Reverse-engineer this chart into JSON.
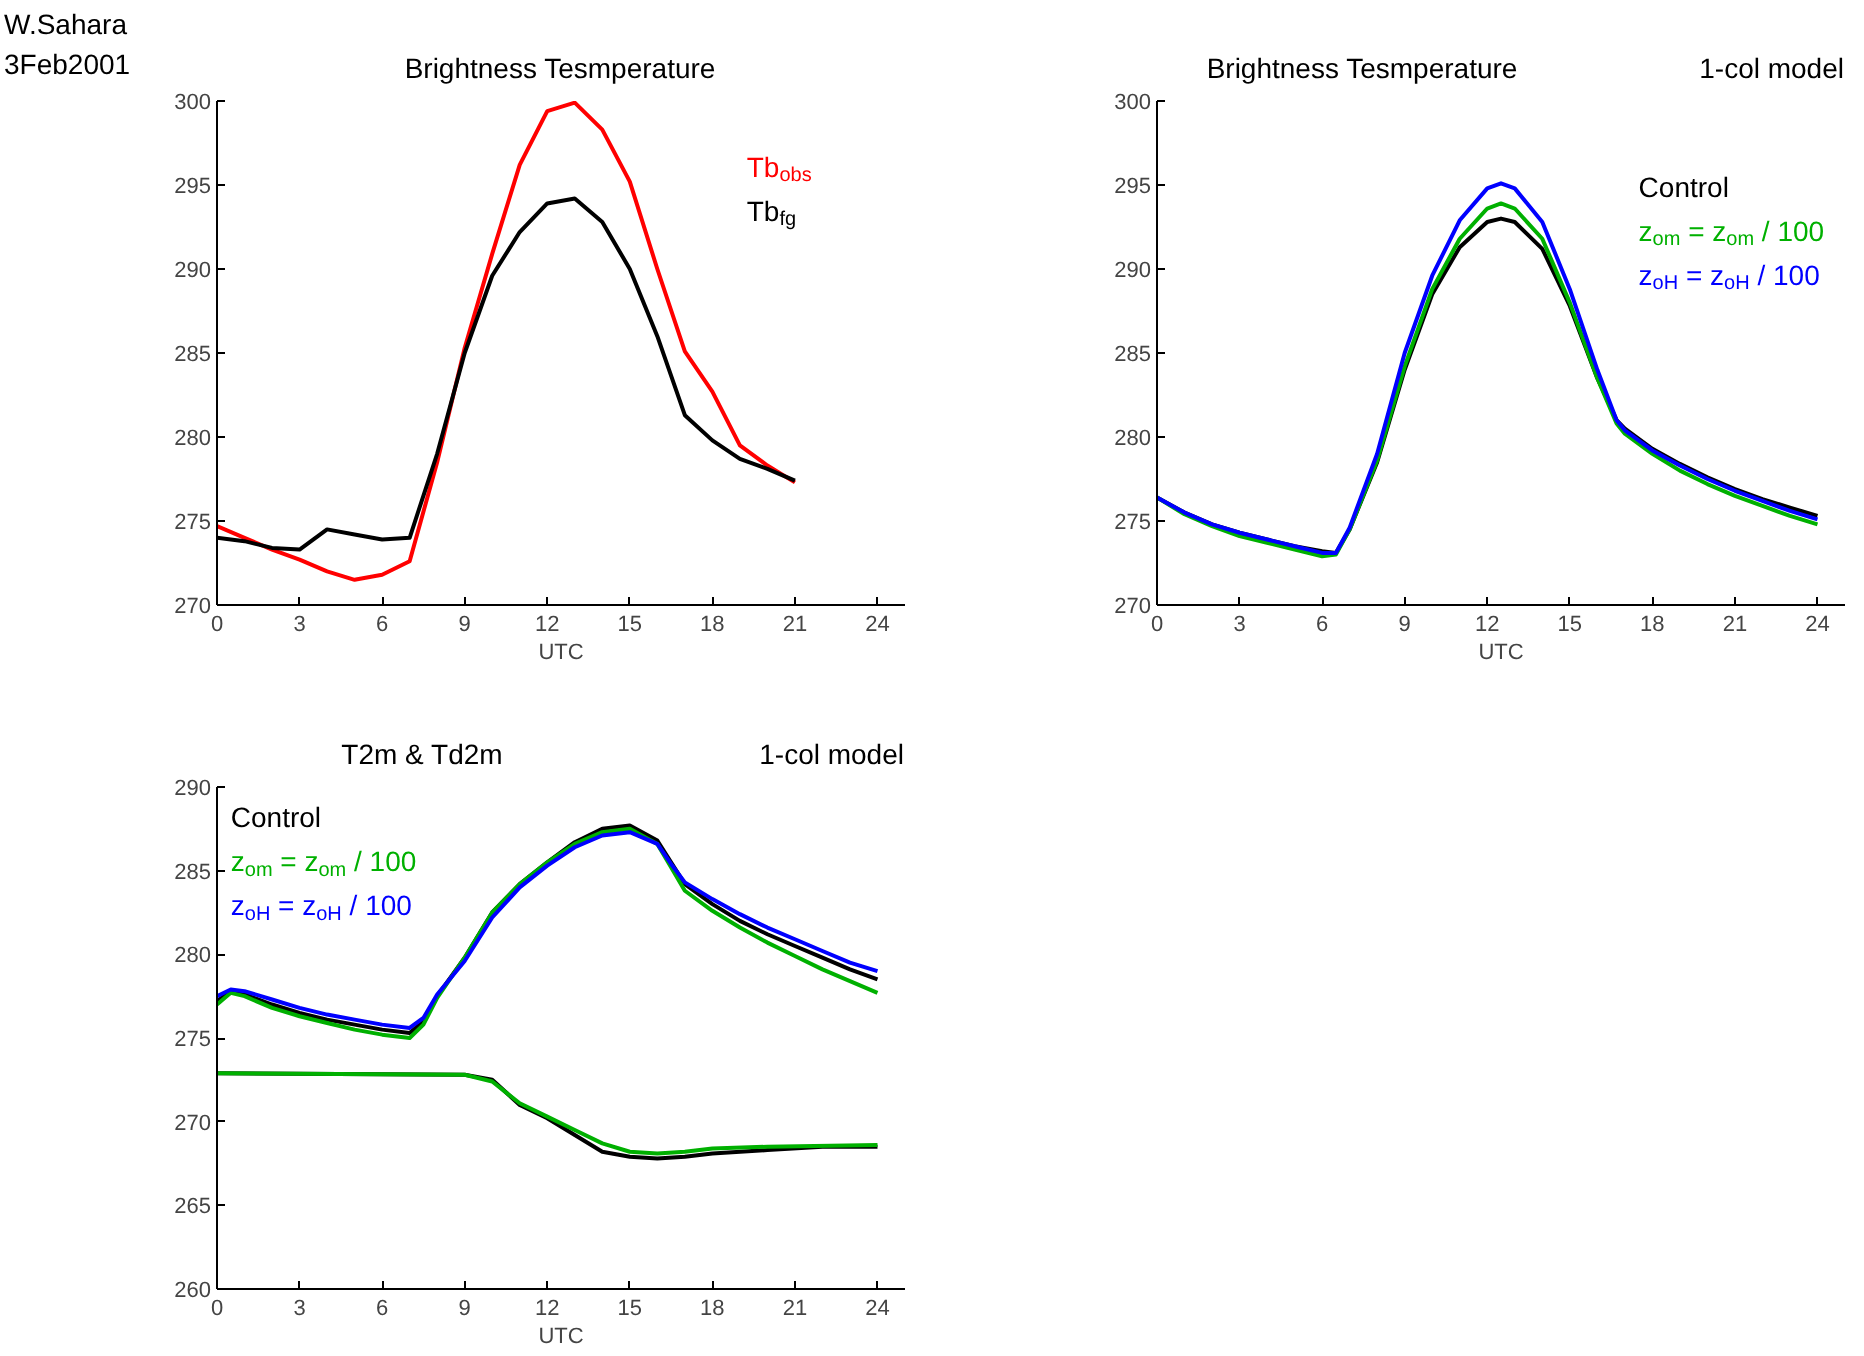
{
  "chart_data": [
    {
      "type": "line",
      "title": "Brightness Tesmperature",
      "xlabel": "UTC",
      "annotations": [
        "W.Sahara",
        "3Feb2001"
      ],
      "xlim": [
        0,
        25
      ],
      "xticks": [
        0,
        3,
        6,
        9,
        12,
        15,
        18,
        21,
        24
      ],
      "ylim": [
        270,
        300
      ],
      "yticks": [
        270,
        275,
        280,
        285,
        290,
        295,
        300
      ],
      "legend": "right",
      "grid": false,
      "marker": "none",
      "line_style": "solid",
      "x": [
        0,
        1,
        2,
        3,
        4,
        5,
        6,
        7,
        8,
        9,
        10,
        11,
        12,
        13,
        14,
        15,
        16,
        17,
        18,
        19,
        20,
        21
      ],
      "series": [
        {
          "name": "Tb$_{obs}$",
          "color": "#ff0000",
          "values": [
            274.7,
            274.0,
            273.3,
            272.7,
            272.0,
            271.5,
            271.8,
            272.6,
            278.5,
            285.3,
            290.9,
            296.2,
            299.4,
            299.9,
            298.3,
            295.2,
            290.0,
            285.1,
            282.7,
            279.5,
            278.3,
            277.3
          ]
        },
        {
          "name": "Tb$_{fg}$",
          "color": "#000000",
          "values": [
            274.0,
            273.8,
            273.4,
            273.3,
            274.5,
            274.2,
            273.9,
            274.0,
            279.0,
            285.0,
            289.6,
            292.2,
            293.9,
            294.2,
            292.8,
            290.0,
            286.0,
            281.3,
            279.8,
            278.7,
            278.1,
            277.4
          ]
        }
      ]
    },
    {
      "type": "line",
      "title": "Brightness Tesmperature",
      "subtitle": "1-col model",
      "xlabel": "UTC",
      "xlim": [
        0,
        25
      ],
      "xticks": [
        0,
        3,
        6,
        9,
        12,
        15,
        18,
        21,
        24
      ],
      "ylim": [
        270,
        300
      ],
      "yticks": [
        270,
        275,
        280,
        285,
        290,
        295,
        300
      ],
      "legend": "top right",
      "grid": false,
      "marker": "none",
      "line_style": "solid",
      "x": [
        0,
        1,
        2,
        3,
        4,
        5,
        6,
        6.5,
        7,
        8,
        9,
        10,
        11,
        12,
        12.5,
        13,
        14,
        15,
        16,
        16.7,
        17,
        18,
        19,
        20,
        21,
        22,
        23,
        24
      ],
      "series": [
        {
          "name": "Control",
          "color": "#000000",
          "values": [
            276.4,
            275.5,
            274.8,
            274.3,
            273.9,
            273.5,
            273.2,
            273.1,
            274.5,
            278.5,
            284.0,
            288.5,
            291.3,
            292.8,
            293.0,
            292.8,
            291.2,
            287.8,
            283.5,
            281.0,
            280.5,
            279.3,
            278.4,
            277.6,
            276.9,
            276.3,
            275.8,
            275.3
          ]
        },
        {
          "name": "z$_{om}$ = z$_{om}$ / 100",
          "color": "#00b000",
          "values": [
            276.4,
            275.4,
            274.7,
            274.1,
            273.7,
            273.3,
            272.9,
            273.0,
            274.5,
            278.6,
            284.2,
            288.8,
            291.8,
            293.6,
            293.9,
            293.6,
            291.8,
            288.0,
            283.5,
            280.8,
            280.2,
            279.0,
            278.0,
            277.2,
            276.5,
            275.9,
            275.3,
            274.8
          ]
        },
        {
          "name": "z$_{oH}$ = z$_{oH}$ / 100",
          "color": "#0000ff",
          "values": [
            276.4,
            275.5,
            274.8,
            274.3,
            273.9,
            273.5,
            273.1,
            273.1,
            274.6,
            279.0,
            285.0,
            289.6,
            292.9,
            294.8,
            295.1,
            294.8,
            292.8,
            288.8,
            284.0,
            281.0,
            280.4,
            279.2,
            278.3,
            277.5,
            276.8,
            276.2,
            275.6,
            275.1
          ]
        }
      ]
    },
    {
      "type": "line",
      "title": "T2m  &  Td2m",
      "subtitle": "1-col model",
      "xlabel": "UTC",
      "xlim": [
        0,
        25
      ],
      "xticks": [
        0,
        3,
        6,
        9,
        12,
        15,
        18,
        21,
        24
      ],
      "ylim": [
        260,
        290
      ],
      "yticks": [
        260,
        265,
        270,
        275,
        280,
        285,
        290
      ],
      "legend": "top left",
      "grid": false,
      "marker": "none",
      "line_style": "solid",
      "x": [
        0,
        0.5,
        1,
        2,
        3,
        4,
        5,
        6,
        7,
        7.5,
        8,
        9,
        10,
        11,
        12,
        13,
        14,
        15,
        16,
        16.5,
        17,
        18,
        19,
        20,
        21,
        22,
        23,
        24
      ],
      "series": [
        {
          "name": "Control",
          "color": "#000000",
          "values": [
            277.2,
            277.8,
            277.6,
            277.0,
            276.5,
            276.1,
            275.8,
            275.5,
            275.3,
            276.0,
            277.5,
            279.8,
            282.5,
            284.2,
            285.5,
            286.7,
            287.5,
            287.7,
            286.8,
            285.5,
            284.2,
            283.0,
            282.0,
            281.2,
            280.5,
            279.8,
            279.1,
            278.5
          ]
        },
        {
          "name": "z$_{om}$ = z$_{om}$ / 100",
          "color": "#00b000",
          "values": [
            277.0,
            277.7,
            277.5,
            276.8,
            276.3,
            275.9,
            275.5,
            275.2,
            275.0,
            275.8,
            277.4,
            279.8,
            282.5,
            284.2,
            285.5,
            286.6,
            287.3,
            287.5,
            286.6,
            285.2,
            283.8,
            282.6,
            281.6,
            280.7,
            279.9,
            279.1,
            278.4,
            277.7
          ]
        },
        {
          "name": "z$_{oH}$ = z$_{oH}$ / 100",
          "color": "#0000ff",
          "values": [
            277.5,
            277.9,
            277.8,
            277.3,
            276.8,
            276.4,
            276.1,
            275.8,
            275.6,
            276.2,
            277.6,
            279.6,
            282.2,
            284.0,
            285.3,
            286.4,
            287.1,
            287.3,
            286.6,
            285.4,
            284.3,
            283.3,
            282.4,
            281.6,
            280.9,
            280.2,
            279.5,
            279.0
          ]
        },
        {
          "color": "#000000",
          "x": [
            0,
            9,
            10,
            11,
            12,
            13,
            14,
            15,
            16,
            17,
            18,
            20,
            22,
            24
          ],
          "values": [
            272.9,
            272.8,
            272.5,
            271.0,
            270.2,
            269.2,
            268.2,
            267.9,
            267.8,
            267.9,
            268.1,
            268.3,
            268.5,
            268.5
          ]
        },
        {
          "color": "#00b000",
          "x": [
            0,
            9,
            10,
            11,
            12,
            13,
            14,
            15,
            16,
            17,
            18,
            20,
            24
          ],
          "values": [
            272.9,
            272.8,
            272.4,
            271.1,
            270.3,
            269.5,
            268.7,
            268.2,
            268.1,
            268.2,
            268.4,
            268.5,
            268.6
          ]
        }
      ]
    }
  ]
}
